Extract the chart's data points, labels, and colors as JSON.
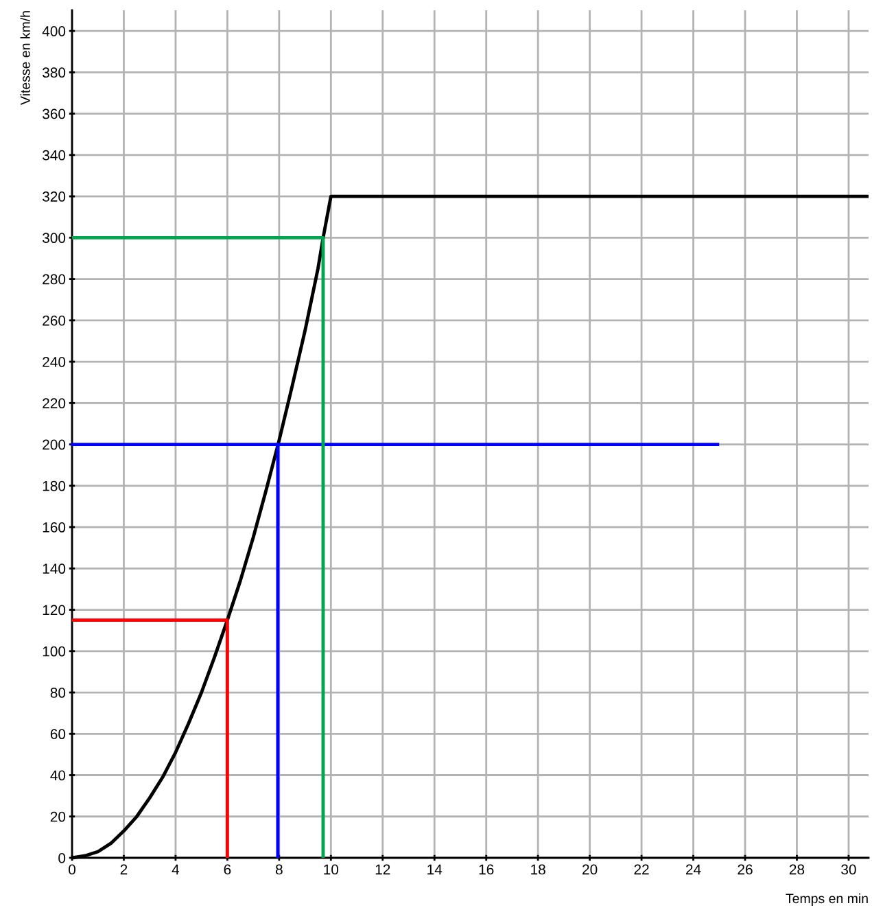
{
  "chart_data": {
    "type": "line",
    "xlabel": "Temps en min",
    "ylabel": "Vitesse en km/h",
    "xlim": [
      0,
      30.77
    ],
    "ylim": [
      0,
      410
    ],
    "xticks": [
      0,
      2,
      4,
      6,
      8,
      10,
      12,
      14,
      16,
      18,
      20,
      22,
      24,
      26,
      28,
      30
    ],
    "yticks": [
      0,
      20,
      40,
      60,
      80,
      100,
      120,
      140,
      160,
      180,
      200,
      220,
      240,
      260,
      280,
      300,
      320,
      340,
      360,
      380,
      400
    ],
    "grid": true,
    "marker": "none",
    "line_style": "solid",
    "series": [
      {
        "color": "#000000",
        "x": [
          0,
          0.5,
          1,
          1.5,
          2,
          2.5,
          3,
          3.5,
          4,
          4.5,
          5,
          5.5,
          6,
          6.5,
          7,
          7.5,
          8,
          8.5,
          9,
          9.5,
          9.7,
          10,
          30.77
        ],
        "values": [
          0,
          1,
          3,
          7,
          13,
          20,
          29,
          39,
          51,
          65,
          80,
          97,
          115,
          134,
          155,
          178,
          202,
          228,
          255,
          285,
          300,
          320,
          320
        ]
      },
      {
        "color": "#ff0000",
        "x": [
          0,
          6,
          6
        ],
        "values": [
          115,
          115,
          0
        ]
      },
      {
        "color": "#0000ff",
        "x": [
          25,
          0,
          7.95,
          7.95
        ],
        "values": [
          200,
          200,
          200,
          0
        ]
      },
      {
        "color": "#00a650",
        "x": [
          0,
          9.7,
          9.7
        ],
        "values": [
          300,
          300,
          0
        ]
      }
    ]
  }
}
